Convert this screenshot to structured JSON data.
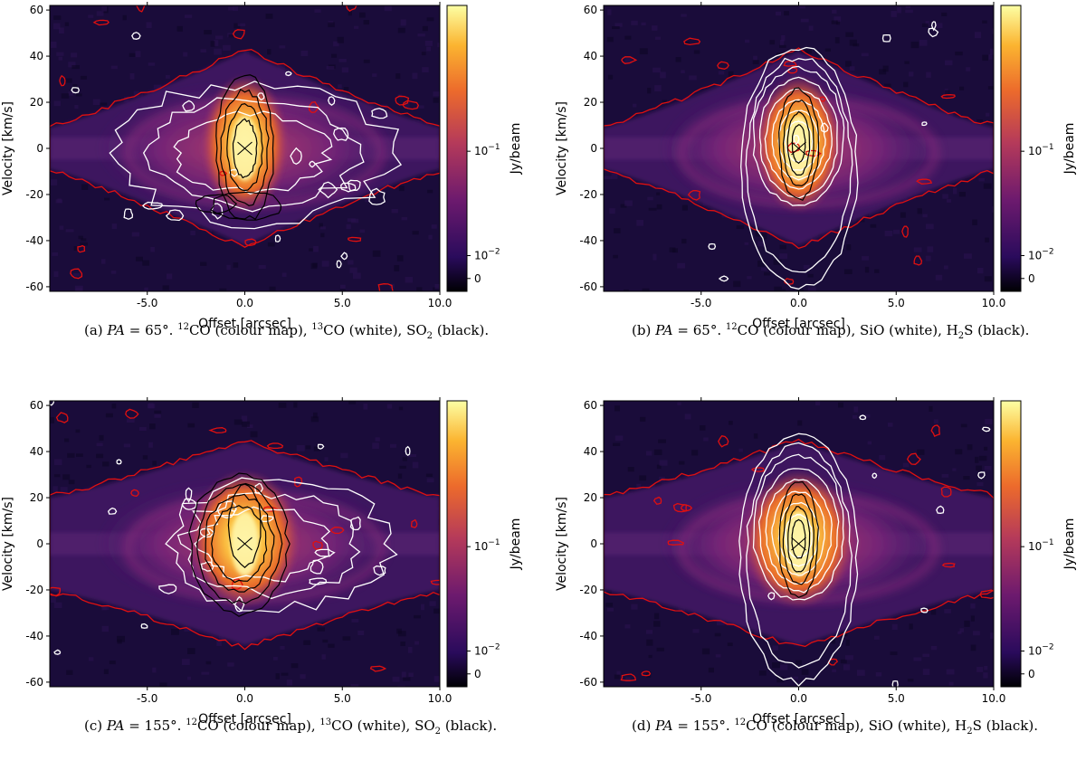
{
  "chart_data": [
    {
      "type": "heatmap",
      "panel": "a",
      "caption": {
        "prefix": "(a)",
        "pa_symbol": "PA",
        "pa_text": " = 65°. ",
        "iso1": "12",
        "after_iso1": "CO (colour map), ",
        "iso2": "13",
        "after_iso2": "CO (white), SO",
        "sub": "2",
        "tail": " (black)."
      },
      "xlabel": "Offset [arcsec]",
      "ylabel": "Velocity [km/s]",
      "xlim": [
        -10,
        10
      ],
      "ylim": [
        -62,
        62
      ],
      "xticks": [
        "-5.0",
        "0.0",
        "5.0",
        "10.0"
      ],
      "yticks": [
        "60",
        "40",
        "20",
        "0",
        "-20",
        "-40",
        "-60"
      ],
      "colorbar": {
        "label": "Jy/beam",
        "scale": "symlog",
        "ticks": [
          {
            "base": "10",
            "exp": "−1"
          },
          {
            "base": "10",
            "exp": "−2"
          },
          {
            "base": "0",
            "exp": ""
          }
        ]
      },
      "colour_map_extent": {
        "half_width_at_0": 10,
        "velocity_extent_center": 42,
        "velocity_extent_edge": 8
      },
      "white_contours_extent": {
        "x": [
          -6.5,
          7.5
        ],
        "v": [
          -32,
          28
        ]
      },
      "black_contours_extent": {
        "x": [
          -1.5,
          1.5
        ],
        "v": [
          -32,
          30
        ]
      },
      "marker": {
        "symbol": "x",
        "x": 0,
        "v": 0
      }
    },
    {
      "type": "heatmap",
      "panel": "b",
      "caption": {
        "prefix": "(b)",
        "pa_symbol": "PA",
        "pa_text": " = 65°. ",
        "iso1": "12",
        "after_iso1": "CO (colour map), SiO (white), H",
        "sub": "2",
        "tail": "S (black)."
      },
      "xlabel": "Offset [arcsec]",
      "ylabel": "Velocity [km/s]",
      "xlim": [
        -10,
        10
      ],
      "ylim": [
        -62,
        62
      ],
      "xticks": [
        "-5.0",
        "0.0",
        "5.0",
        "10.0"
      ],
      "yticks": [
        "60",
        "40",
        "20",
        "0",
        "-20",
        "-40",
        "-60"
      ],
      "colorbar": {
        "label": "Jy/beam",
        "scale": "symlog",
        "ticks": [
          {
            "base": "10",
            "exp": "−1"
          },
          {
            "base": "10",
            "exp": "−2"
          },
          {
            "base": "0",
            "exp": ""
          }
        ]
      },
      "white_contours_extent": {
        "x": [
          -3,
          3
        ],
        "v": [
          -60,
          44
        ]
      },
      "black_contours_extent": {
        "x": [
          -1,
          1
        ],
        "v": [
          -22,
          26
        ]
      },
      "marker": {
        "symbol": "x",
        "x": 0,
        "v": 0
      }
    },
    {
      "type": "heatmap",
      "panel": "c",
      "caption": {
        "prefix": "(c)",
        "pa_symbol": "PA",
        "pa_text": " = 155°. ",
        "iso1": "12",
        "after_iso1": "CO (colour map), ",
        "iso2": "13",
        "after_iso2": "CO (white), SO",
        "sub": "2",
        "tail": " (black)."
      },
      "xlabel": "Offset [arcsec]",
      "ylabel": "Velocity [km/s]",
      "xlim": [
        -10,
        10
      ],
      "ylim": [
        -62,
        62
      ],
      "xticks": [
        "-5.0",
        "0.0",
        "5.0",
        "10.0"
      ],
      "yticks": [
        "60",
        "40",
        "20",
        "0",
        "-20",
        "-40",
        "-60"
      ],
      "colorbar": {
        "label": "Jy/beam",
        "scale": "symlog",
        "ticks": [
          {
            "base": "10",
            "exp": "−1"
          },
          {
            "base": "10",
            "exp": "−2"
          },
          {
            "base": "0",
            "exp": ""
          }
        ]
      },
      "white_contours_extent": {
        "x": [
          -4,
          7.5
        ],
        "v": [
          -28,
          28
        ]
      },
      "black_contours_extent": {
        "x": [
          -3,
          2.5
        ],
        "v": [
          -30,
          30
        ]
      },
      "marker": {
        "symbol": "x",
        "x": 0,
        "v": 0
      }
    },
    {
      "type": "heatmap",
      "panel": "d",
      "caption": {
        "prefix": "(d)",
        "pa_symbol": "PA",
        "pa_text": " = 155°. ",
        "iso1": "12",
        "after_iso1": "CO (colour map), SiO (white), H",
        "sub": "2",
        "tail": "S (black)."
      },
      "xlabel": "Offset [arcsec]",
      "ylabel": "Velocity [km/s]",
      "xlim": [
        -10,
        10
      ],
      "ylim": [
        -62,
        62
      ],
      "xticks": [
        "-5.0",
        "0.0",
        "5.0",
        "10.0"
      ],
      "yticks": [
        "60",
        "40",
        "20",
        "0",
        "-20",
        "-40",
        "-60"
      ],
      "colorbar": {
        "label": "Jy/beam",
        "scale": "symlog",
        "ticks": [
          {
            "base": "10",
            "exp": "−1"
          },
          {
            "base": "10",
            "exp": "−2"
          },
          {
            "base": "0",
            "exp": ""
          }
        ]
      },
      "white_contours_extent": {
        "x": [
          -3,
          3
        ],
        "v": [
          -60,
          48
        ]
      },
      "black_contours_extent": {
        "x": [
          -1,
          1
        ],
        "v": [
          -22,
          28
        ]
      },
      "marker": {
        "symbol": "x",
        "x": 0,
        "v": 0
      }
    }
  ],
  "colors": {
    "background_dark": "#1a0c3a",
    "band_purple": "#5a2a7a",
    "emission_orange": "#e8692a",
    "emission_yellow": "#fde46a",
    "outline_red": "#e01010",
    "contour_white": "#ffffff",
    "contour_black": "#000000",
    "colorbar_stops": [
      "#000004",
      "#2a0b5c",
      "#6d1a6e",
      "#b53a5a",
      "#ec6a2c",
      "#fbb430",
      "#fcffa4"
    ]
  }
}
